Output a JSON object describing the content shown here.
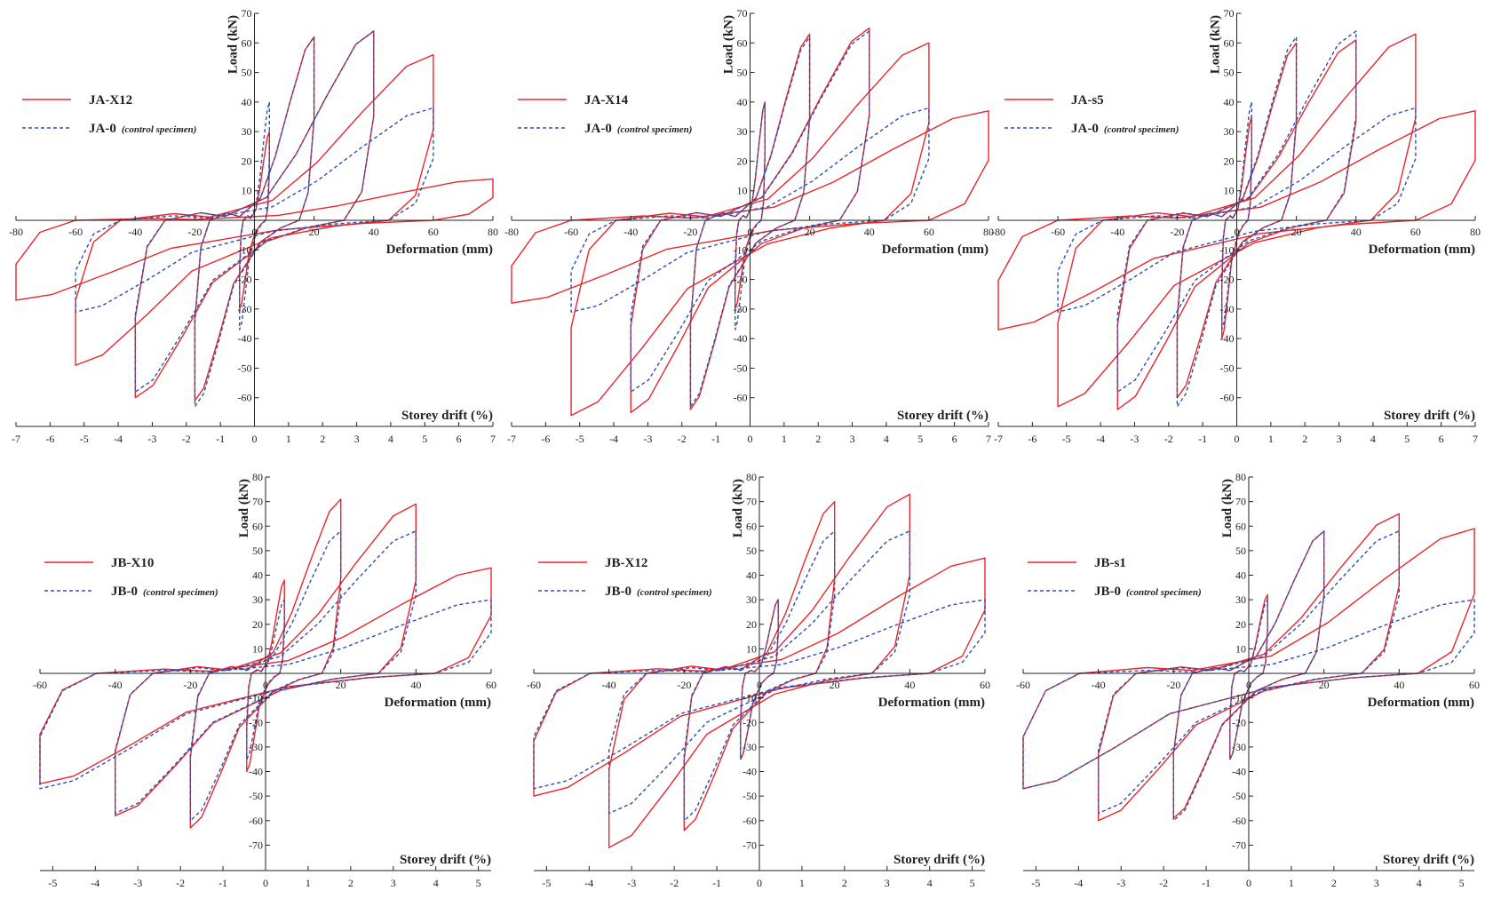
{
  "colors": {
    "strengthened": "#e8262b",
    "control": "#2c4fb0",
    "axis": "#222222"
  },
  "chart_data": [
    {
      "type": "line",
      "id": "JA-X12",
      "xlabel": "Deformation (mm)",
      "ylabel": "Load (kN)",
      "x2label": "Storey drift (%)",
      "xlim": [
        -80,
        80
      ],
      "ylim": [
        -75,
        70
      ],
      "x_ticks": [
        -80,
        -60,
        -40,
        -20,
        0,
        20,
        40,
        60,
        80
      ],
      "y_ticks": [
        -60,
        -50,
        -40,
        -30,
        -20,
        -10,
        10,
        20,
        30,
        40,
        50,
        60,
        70
      ],
      "drift_lim": [
        -7,
        7
      ],
      "drift_ticks": [
        -7,
        -6,
        -5,
        -4,
        -3,
        -2,
        -1,
        0,
        1,
        2,
        3,
        4,
        5,
        6,
        7
      ],
      "legend": "left",
      "series": [
        {
          "name": "JA-X12",
          "style": "solid",
          "cycles": [
            [
              5,
              30,
              -30
            ],
            [
              20,
              62,
              -61
            ],
            [
              40,
              64,
              -60
            ],
            [
              60,
              56,
              -49
            ],
            [
              80,
              14,
              -27
            ]
          ]
        },
        {
          "name": "JA-0",
          "note": "(control specimen)",
          "style": "dashed",
          "cycles": [
            [
              5,
              40,
              -37
            ],
            [
              20,
              62,
              -63
            ],
            [
              40,
              64,
              -58
            ],
            [
              60,
              38,
              -31
            ]
          ]
        }
      ]
    },
    {
      "type": "line",
      "id": "JA-X14",
      "xlabel": "Deformation (mm)",
      "ylabel": "Load (kN)",
      "x2label": "Storey drift (%)",
      "xlim": [
        -80,
        80
      ],
      "ylim": [
        -75,
        70
      ],
      "x_ticks": [
        -80,
        -60,
        -40,
        -20,
        0,
        20,
        40,
        60,
        80
      ],
      "y_ticks": [
        -60,
        -50,
        -40,
        -30,
        -20,
        -10,
        10,
        20,
        30,
        40,
        50,
        60,
        70
      ],
      "drift_lim": [
        -7,
        7
      ],
      "drift_ticks": [
        -7,
        -6,
        -5,
        -4,
        -3,
        -2,
        -1,
        0,
        1,
        2,
        3,
        4,
        5,
        6,
        7
      ],
      "legend": "left",
      "series": [
        {
          "name": "JA-X14",
          "style": "solid",
          "cycles": [
            [
              5,
              40,
              -30
            ],
            [
              20,
              63,
              -64
            ],
            [
              40,
              65,
              -65
            ],
            [
              60,
              60,
              -66
            ],
            [
              80,
              37,
              -28
            ]
          ]
        },
        {
          "name": "JA-0",
          "note": "(control specimen)",
          "style": "dashed",
          "cycles": [
            [
              5,
              40,
              -37
            ],
            [
              20,
              62,
              -63
            ],
            [
              40,
              64,
              -58
            ],
            [
              60,
              38,
              -31
            ]
          ]
        }
      ]
    },
    {
      "type": "line",
      "id": "JA-s5",
      "xlabel": "Deformation (mm)",
      "ylabel": "Load (kN)",
      "x2label": "Storey drift (%)",
      "xlim": [
        -80,
        80
      ],
      "ylim": [
        -75,
        70
      ],
      "x_ticks": [
        -80,
        -60,
        -40,
        -20,
        0,
        20,
        40,
        60,
        80
      ],
      "y_ticks": [
        -60,
        -50,
        -40,
        -30,
        -20,
        -10,
        10,
        20,
        30,
        40,
        50,
        60,
        70
      ],
      "drift_lim": [
        -7,
        7
      ],
      "drift_ticks": [
        -7,
        -6,
        -5,
        -4,
        -3,
        -2,
        -1,
        0,
        1,
        2,
        3,
        4,
        5,
        6,
        7
      ],
      "legend": "left",
      "series": [
        {
          "name": "JA-s5",
          "style": "solid",
          "cycles": [
            [
              5,
              35,
              -40
            ],
            [
              20,
              60,
              -60
            ],
            [
              40,
              61,
              -64
            ],
            [
              60,
              63,
              -63
            ],
            [
              80,
              37,
              -37
            ]
          ]
        },
        {
          "name": "JA-0",
          "note": "(control specimen)",
          "style": "dashed",
          "cycles": [
            [
              5,
              40,
              -37
            ],
            [
              20,
              62,
              -63
            ],
            [
              40,
              64,
              -58
            ],
            [
              60,
              38,
              -31
            ]
          ]
        }
      ]
    },
    {
      "type": "line",
      "id": "JB-X10",
      "xlabel": "Deformation (mm)",
      "ylabel": "Load (kN)",
      "x2label": "Storey drift (%)",
      "xlim": [
        -60,
        60
      ],
      "ylim": [
        -80,
        80
      ],
      "x_ticks": [
        -60,
        -40,
        -20,
        0,
        20,
        40,
        60
      ],
      "y_ticks": [
        -70,
        -60,
        -50,
        -40,
        -30,
        -20,
        -10,
        10,
        20,
        30,
        40,
        50,
        60,
        70,
        80
      ],
      "drift_lim": [
        -5.3,
        5.3
      ],
      "drift_ticks": [
        -5,
        -4,
        -3,
        -2,
        -1,
        0,
        1,
        2,
        3,
        4,
        5
      ],
      "legend": "left",
      "series": [
        {
          "name": "JB-X10",
          "style": "solid",
          "cycles": [
            [
              5,
              38,
              -40
            ],
            [
              20,
              71,
              -63
            ],
            [
              40,
              69,
              -58
            ],
            [
              60,
              43,
              -45
            ]
          ]
        },
        {
          "name": "JB-0",
          "note": "(control specimen)",
          "style": "dashed",
          "cycles": [
            [
              5,
              30,
              -35
            ],
            [
              20,
              58,
              -60
            ],
            [
              40,
              58,
              -57
            ],
            [
              60,
              30,
              -47
            ]
          ]
        }
      ]
    },
    {
      "type": "line",
      "id": "JB-X12",
      "xlabel": "Deformation (mm)",
      "ylabel": "Load (kN)",
      "x2label": "Storey drift (%)",
      "xlim": [
        -60,
        60
      ],
      "ylim": [
        -80,
        80
      ],
      "x_ticks": [
        -60,
        -40,
        -20,
        0,
        20,
        40,
        60
      ],
      "y_ticks": [
        -70,
        -60,
        -50,
        -40,
        -30,
        -20,
        -10,
        10,
        20,
        30,
        40,
        50,
        60,
        70,
        80
      ],
      "drift_lim": [
        -5.3,
        5.3
      ],
      "drift_ticks": [
        -5,
        -4,
        -3,
        -2,
        -1,
        0,
        1,
        2,
        3,
        4,
        5
      ],
      "legend": "left",
      "series": [
        {
          "name": "JB-X12",
          "style": "solid",
          "cycles": [
            [
              5,
              30,
              -35
            ],
            [
              20,
              70,
              -64
            ],
            [
              40,
              73,
              -71
            ],
            [
              60,
              47,
              -50
            ]
          ]
        },
        {
          "name": "JB-0",
          "note": "(control specimen)",
          "style": "dashed",
          "cycles": [
            [
              5,
              30,
              -35
            ],
            [
              20,
              58,
              -60
            ],
            [
              40,
              58,
              -57
            ],
            [
              60,
              30,
              -47
            ]
          ]
        }
      ]
    },
    {
      "type": "line",
      "id": "JB-s1",
      "xlabel": "Deformation (mm)",
      "ylabel": "Load (kN)",
      "x2label": "Storey drift (%)",
      "xlim": [
        -60,
        60
      ],
      "ylim": [
        -80,
        80
      ],
      "x_ticks": [
        -60,
        -40,
        -20,
        0,
        20,
        40,
        60
      ],
      "y_ticks": [
        -70,
        -60,
        -50,
        -40,
        -30,
        -20,
        -10,
        10,
        20,
        30,
        40,
        50,
        60,
        70,
        80
      ],
      "drift_lim": [
        -5.3,
        5.3
      ],
      "drift_ticks": [
        -5,
        -4,
        -3,
        -2,
        -1,
        0,
        1,
        2,
        3,
        4,
        5
      ],
      "legend": "left",
      "series": [
        {
          "name": "JB-s1",
          "style": "solid",
          "cycles": [
            [
              5,
              32,
              -35
            ],
            [
              20,
              58,
              -59
            ],
            [
              40,
              65,
              -60
            ],
            [
              60,
              59,
              -47
            ]
          ]
        },
        {
          "name": "JB-0",
          "note": "(control specimen)",
          "style": "dashed",
          "cycles": [
            [
              5,
              30,
              -35
            ],
            [
              20,
              58,
              -60
            ],
            [
              40,
              58,
              -57
            ],
            [
              60,
              30,
              -47
            ]
          ]
        }
      ]
    }
  ]
}
